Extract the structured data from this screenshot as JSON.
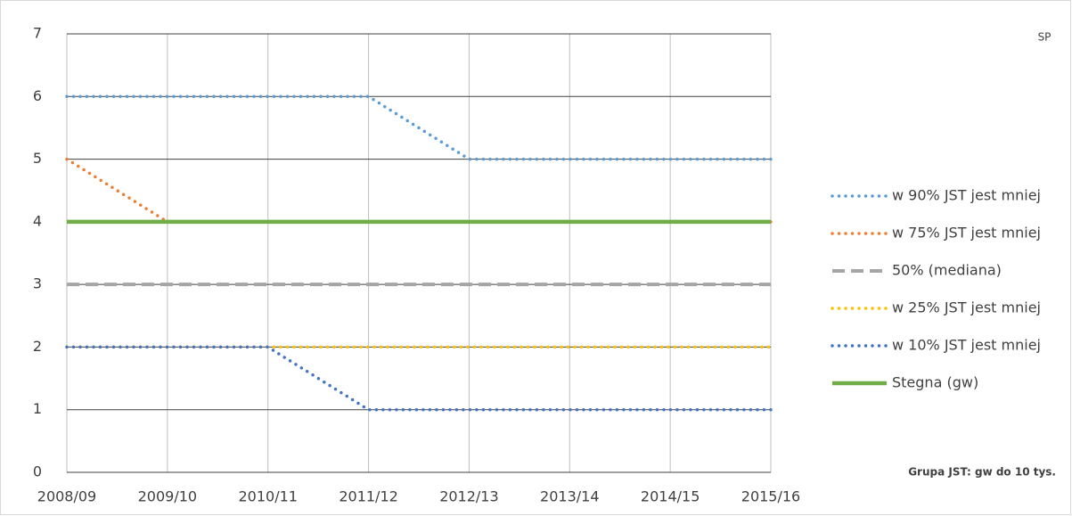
{
  "chart_data": {
    "type": "line",
    "corner_label": "SP",
    "annotation": "Grupa JST: gw do 10 tys.",
    "categories": [
      "2008/09",
      "2009/10",
      "2010/11",
      "2011/12",
      "2012/13",
      "2013/14",
      "2014/15",
      "2015/16"
    ],
    "series": [
      {
        "name": "w 90% JST jest mniej",
        "color": "#5b9bd5",
        "line_style": "dotted",
        "values": [
          6,
          6,
          6,
          6,
          5,
          5,
          5,
          5
        ]
      },
      {
        "name": "w 75% JST jest mniej",
        "color": "#ed7d31",
        "line_style": "dotted",
        "values": [
          5,
          4,
          4,
          4,
          4,
          4,
          4,
          4
        ]
      },
      {
        "name": "50% (mediana)",
        "color": "#a5a5a5",
        "line_style": "dashed",
        "values": [
          3,
          3,
          3,
          3,
          3,
          3,
          3,
          3
        ]
      },
      {
        "name": "w 25% JST jest mniej",
        "color": "#ffc000",
        "line_style": "dotted",
        "values": [
          2,
          2,
          2,
          2,
          2,
          2,
          2,
          2
        ]
      },
      {
        "name": "w 10% JST jest mniej",
        "color": "#4472c4",
        "line_style": "dotted",
        "values": [
          2,
          2,
          2,
          1,
          1,
          1,
          1,
          1
        ]
      },
      {
        "name": "Stegna (gw)",
        "color": "#70ad47",
        "line_style": "solid",
        "values": [
          4,
          4,
          4,
          4,
          4,
          4,
          4,
          4
        ]
      }
    ],
    "ylim": [
      0,
      7
    ],
    "yticks": [
      0,
      1,
      2,
      3,
      4,
      5,
      6,
      7
    ],
    "grid": true,
    "legend": "right"
  }
}
